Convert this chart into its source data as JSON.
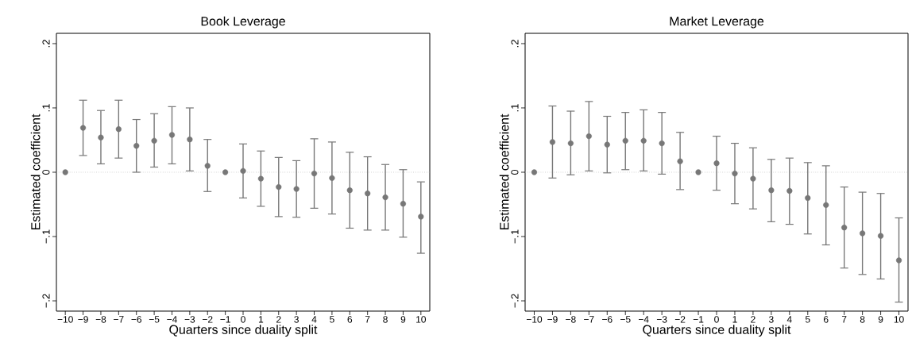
{
  "chart_data": [
    {
      "type": "scatter",
      "title": "Book Leverage",
      "xlabel": "Quarters since duality split",
      "ylabel": "Estimated coefficient",
      "marker": "circle",
      "grid": false,
      "x": [
        -10,
        -9,
        -8,
        -7,
        -6,
        -5,
        -4,
        -3,
        -2,
        -1,
        0,
        1,
        2,
        3,
        4,
        5,
        6,
        7,
        8,
        9,
        10
      ],
      "series": [
        {
          "color": "#777777",
          "values": [
            0,
            0.069,
            0.054,
            0.067,
            0.041,
            0.049,
            0.058,
            0.051,
            0.01,
            0,
            0.002,
            -0.01,
            -0.023,
            -0.026,
            -0.002,
            -0.009,
            -0.028,
            -0.033,
            -0.039,
            -0.049,
            -0.069
          ],
          "errors": [
            null,
            [
              0.026,
              0.112
            ],
            [
              0.013,
              0.096
            ],
            [
              0.022,
              0.112
            ],
            [
              0.0,
              0.082
            ],
            [
              0.008,
              0.091
            ],
            [
              0.013,
              0.102
            ],
            [
              0.002,
              0.1
            ],
            [
              -0.03,
              0.051
            ],
            null,
            [
              -0.04,
              0.044
            ],
            [
              -0.053,
              0.033
            ],
            [
              -0.069,
              0.023
            ],
            [
              -0.07,
              0.018
            ],
            [
              -0.056,
              0.052
            ],
            [
              -0.065,
              0.047
            ],
            [
              -0.087,
              0.031
            ],
            [
              -0.09,
              0.024
            ],
            [
              -0.09,
              0.012
            ],
            [
              -0.101,
              0.004
            ],
            [
              -0.126,
              -0.015
            ]
          ]
        }
      ],
      "ref_lines": [
        {
          "axis": "y",
          "value": 0,
          "color": "#bbbbbb",
          "line_style": "dotted"
        }
      ],
      "xlim": [
        -10.5,
        10.5
      ],
      "ylim": [
        -0.216,
        0.216
      ],
      "xticks": [
        {
          "value": -10,
          "label": "−10"
        },
        {
          "value": -9,
          "label": "−9"
        },
        {
          "value": -8,
          "label": "−8"
        },
        {
          "value": -7,
          "label": "−7"
        },
        {
          "value": -6,
          "label": "−6"
        },
        {
          "value": -5,
          "label": "−5"
        },
        {
          "value": -4,
          "label": "−4"
        },
        {
          "value": -3,
          "label": "−3"
        },
        {
          "value": -2,
          "label": "−2"
        },
        {
          "value": -1,
          "label": "−1"
        },
        0,
        1,
        2,
        3,
        4,
        5,
        6,
        7,
        8,
        9,
        10
      ],
      "yticks": [
        {
          "value": -0.2,
          "label": "−.2"
        },
        {
          "value": -0.1,
          "label": "−.1"
        },
        0,
        {
          "value": 0.1,
          "label": ".1"
        },
        {
          "value": 0.2,
          "label": ".2"
        }
      ]
    },
    {
      "type": "scatter",
      "title": "Market Leverage",
      "xlabel": "Quarters since duality split",
      "ylabel": "Estimated coefficient",
      "marker": "circle",
      "grid": false,
      "x": [
        -10,
        -9,
        -8,
        -7,
        -6,
        -5,
        -4,
        -3,
        -2,
        -1,
        0,
        1,
        2,
        3,
        4,
        5,
        6,
        7,
        8,
        9,
        10
      ],
      "series": [
        {
          "color": "#777777",
          "values": [
            0,
            0.047,
            0.045,
            0.056,
            0.043,
            0.049,
            0.049,
            0.045,
            0.017,
            0,
            0.014,
            -0.002,
            -0.01,
            -0.028,
            -0.029,
            -0.04,
            -0.051,
            -0.086,
            -0.095,
            -0.099,
            -0.137
          ],
          "errors": [
            null,
            [
              -0.009,
              0.103
            ],
            [
              -0.004,
              0.095
            ],
            [
              0.002,
              0.11
            ],
            [
              -0.001,
              0.087
            ],
            [
              0.004,
              0.093
            ],
            [
              0.002,
              0.097
            ],
            [
              -0.003,
              0.093
            ],
            [
              -0.027,
              0.062
            ],
            null,
            [
              -0.028,
              0.056
            ],
            [
              -0.049,
              0.045
            ],
            [
              -0.057,
              0.038
            ],
            [
              -0.077,
              0.02
            ],
            [
              -0.081,
              0.022
            ],
            [
              -0.096,
              0.015
            ],
            [
              -0.113,
              0.01
            ],
            [
              -0.149,
              -0.023
            ],
            [
              -0.159,
              -0.031
            ],
            [
              -0.166,
              -0.033
            ],
            [
              -0.202,
              -0.071
            ]
          ]
        }
      ],
      "ref_lines": [
        {
          "axis": "y",
          "value": 0,
          "color": "#bbbbbb",
          "line_style": "dotted"
        }
      ],
      "xlim": [
        -10.5,
        10.5
      ],
      "ylim": [
        -0.216,
        0.216
      ],
      "xticks": [
        {
          "value": -10,
          "label": "−10"
        },
        {
          "value": -9,
          "label": "−9"
        },
        {
          "value": -8,
          "label": "−8"
        },
        {
          "value": -7,
          "label": "−7"
        },
        {
          "value": -6,
          "label": "−6"
        },
        {
          "value": -5,
          "label": "−5"
        },
        {
          "value": -4,
          "label": "−4"
        },
        {
          "value": -3,
          "label": "−3"
        },
        {
          "value": -2,
          "label": "−2"
        },
        {
          "value": -1,
          "label": "−1"
        },
        0,
        1,
        2,
        3,
        4,
        5,
        6,
        7,
        8,
        9,
        10
      ],
      "yticks": [
        {
          "value": -0.2,
          "label": "−.2"
        },
        {
          "value": -0.1,
          "label": "−.1"
        },
        0,
        {
          "value": 0.1,
          "label": ".1"
        },
        {
          "value": 0.2,
          "label": ".2"
        }
      ]
    }
  ]
}
